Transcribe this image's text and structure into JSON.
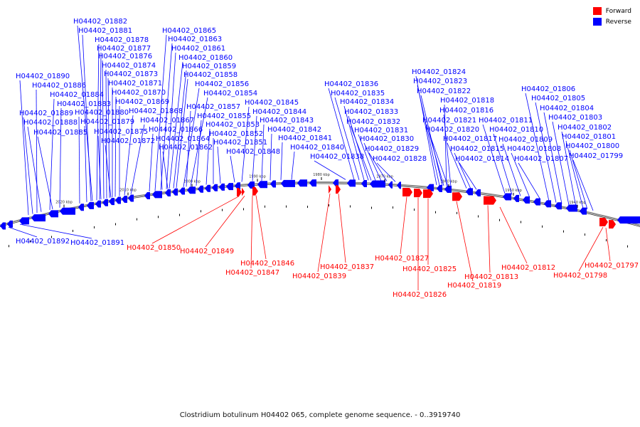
{
  "caption": "Clostridium botulinum H04402 065, complete genome sequence. - 0..3919740",
  "legend": [
    {
      "label": "Forward",
      "color": "#ff0000"
    },
    {
      "label": "Reverse",
      "color": "#0000ff"
    }
  ],
  "axis_ticks": [
    "2020 kbp",
    "2010 kbp",
    "2000 kbp",
    "1990 kbp",
    "1980 kbp",
    "1970 kbp",
    "1960 kbp",
    "1950 kbp",
    "1940 kbp"
  ],
  "reverse_labels": [
    "H04402_01882",
    "H04402_01881",
    "H04402_01878",
    "H04402_01877",
    "H04402_01876",
    "H04402_01874",
    "H04402_01873",
    "H04402_01871",
    "H04402_01870",
    "H04402_01869",
    "H04402_01868",
    "H04402_01867",
    "H04402_01890",
    "H04402_01886",
    "H04402_01884",
    "H04402_01883",
    "H04402_01880",
    "H04402_01879",
    "H04402_01875",
    "H04402_01872",
    "H04402_01889",
    "H04402_01888",
    "H04402_01885",
    "H04402_01865",
    "H04402_01863",
    "H04402_01861",
    "H04402_01860",
    "H04402_01859",
    "H04402_01858",
    "H04402_01856",
    "H04402_01854",
    "H04402_01857",
    "H04402_01855",
    "H04402_01853",
    "H04402_01852",
    "H04402_01851",
    "H04402_01866",
    "H04402_01864",
    "H04402_01862",
    "H04402_01845",
    "H04402_01844",
    "H04402_01843",
    "H04402_01842",
    "H04402_01841",
    "H04402_01840",
    "H04402_01848",
    "H04402_01836",
    "H04402_01835",
    "H04402_01834",
    "H04402_01833",
    "H04402_01832",
    "H04402_01831",
    "H04402_01830",
    "H04402_01829",
    "H04402_01828",
    "H04402_01838",
    "H04402_01824",
    "H04402_01823",
    "H04402_01822",
    "H04402_01818",
    "H04402_01816",
    "H04402_01821",
    "H04402_01820",
    "H04402_01817",
    "H04402_01815",
    "H04402_01814",
    "H04402_01811",
    "H04402_01810",
    "H04402_01809",
    "H04402_01808",
    "H04402_01807",
    "H04402_01806",
    "H04402_01805",
    "H04402_01804",
    "H04402_01803",
    "H04402_01802",
    "H04402_01801",
    "H04402_01800",
    "H04402_01799",
    "H04402_01892",
    "H04402_01891"
  ],
  "forward_labels": [
    "H04402_01850",
    "H04402_01849",
    "H04402_01846",
    "H04402_01847",
    "H04402_01837",
    "H04402_01839",
    "H04402_01827",
    "H04402_01825",
    "H04402_01826",
    "H04402_01819",
    "H04402_01813",
    "H04402_01812",
    "H04402_01797",
    "H04402_01798"
  ]
}
